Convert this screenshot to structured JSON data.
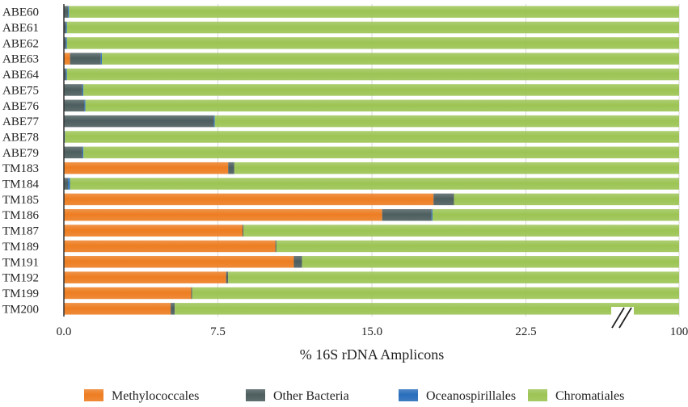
{
  "chart_data": {
    "type": "bar",
    "orientation": "horizontal",
    "stacked": true,
    "title": "",
    "xlabel": "% 16S rDNA Amplicons",
    "ylabel": "",
    "xlim": [
      0,
      100
    ],
    "axis_break": "between 22.5 and 100",
    "x_ticks": [
      {
        "label": "0.0",
        "value": 0
      },
      {
        "label": "7.5",
        "value": 7.5
      },
      {
        "label": "15.0",
        "value": 15
      },
      {
        "label": "22.5",
        "value": 22.5
      },
      {
        "label": "100",
        "value": 100
      }
    ],
    "categories": [
      "ABE60",
      "ABE61",
      "ABE62",
      "ABE63",
      "ABE64",
      "ABE75",
      "ABE76",
      "ABE77",
      "ABE78",
      "ABE79",
      "TM183",
      "TM184",
      "TM185",
      "TM186",
      "TM187",
      "TM189",
      "TM191",
      "TM192",
      "TM199",
      "TM200"
    ],
    "series": [
      {
        "name": "Methylococcales",
        "color": "#ED7D22",
        "values": [
          0,
          0,
          0,
          0.3,
          0,
          0,
          0,
          0,
          0,
          0,
          8.0,
          0,
          18.0,
          15.5,
          8.7,
          10.3,
          11.2,
          7.9,
          6.2,
          5.2
        ]
      },
      {
        "name": "Other Bacteria",
        "color": "#4D5E5F",
        "values": [
          0.2,
          0.1,
          0.1,
          1.5,
          0.1,
          0.9,
          1.0,
          7.3,
          0,
          0.9,
          0.3,
          0.2,
          1.0,
          2.4,
          0.05,
          0.05,
          0.4,
          0.1,
          0.05,
          0.2
        ]
      },
      {
        "name": "Oceanospirillales",
        "color": "#2A6EBB",
        "values": [
          0.05,
          0.05,
          0.05,
          0.05,
          0.05,
          0.05,
          0.05,
          0.05,
          0.05,
          0.05,
          0,
          0.1,
          0,
          0.05,
          0,
          0,
          0,
          0,
          0,
          0
        ]
      },
      {
        "name": "Chromatiales",
        "color": "#9CC454",
        "values": [
          99.75,
          99.85,
          99.85,
          98.15,
          99.85,
          99.05,
          98.95,
          92.65,
          99.95,
          99.05,
          91.7,
          99.7,
          81.0,
          82.05,
          91.25,
          89.65,
          88.4,
          92.0,
          93.75,
          94.6
        ]
      }
    ],
    "legend_position": "bottom"
  }
}
